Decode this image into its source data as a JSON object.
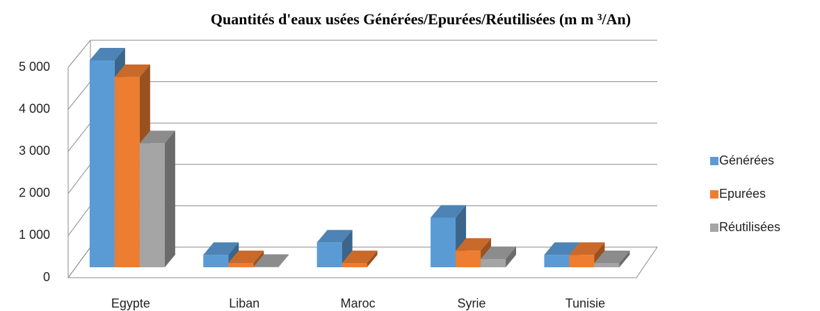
{
  "chart_data": {
    "type": "bar3d",
    "title": "Quantités d'eaux usées Générées/Epurées/Réutilisées (m m ³/An)",
    "categories": [
      "Egypte",
      "Liban",
      "Maroc",
      "Syrie",
      "Tunisie"
    ],
    "series": [
      {
        "name": "Générées",
        "color": "#5b9bd5",
        "values": [
          5000,
          300,
          600,
          1200,
          300
        ]
      },
      {
        "name": "Epurées",
        "color": "#ed7d31",
        "values": [
          4600,
          100,
          100,
          400,
          300
        ]
      },
      {
        "name": "Réutilisées",
        "color": "#a5a5a5",
        "values": [
          3000,
          10,
          null,
          200,
          100
        ]
      }
    ],
    "ylim": [
      0,
      5000
    ],
    "yticks": [
      0,
      {
        "value": 1000,
        "label": "1 000"
      },
      {
        "value": 2000,
        "label": "2 000"
      },
      {
        "value": 3000,
        "label": "3 000"
      },
      {
        "value": 4000,
        "label": "4 000"
      },
      {
        "value": 5000,
        "label": "5 000"
      }
    ],
    "grid": true,
    "legend": "right"
  }
}
